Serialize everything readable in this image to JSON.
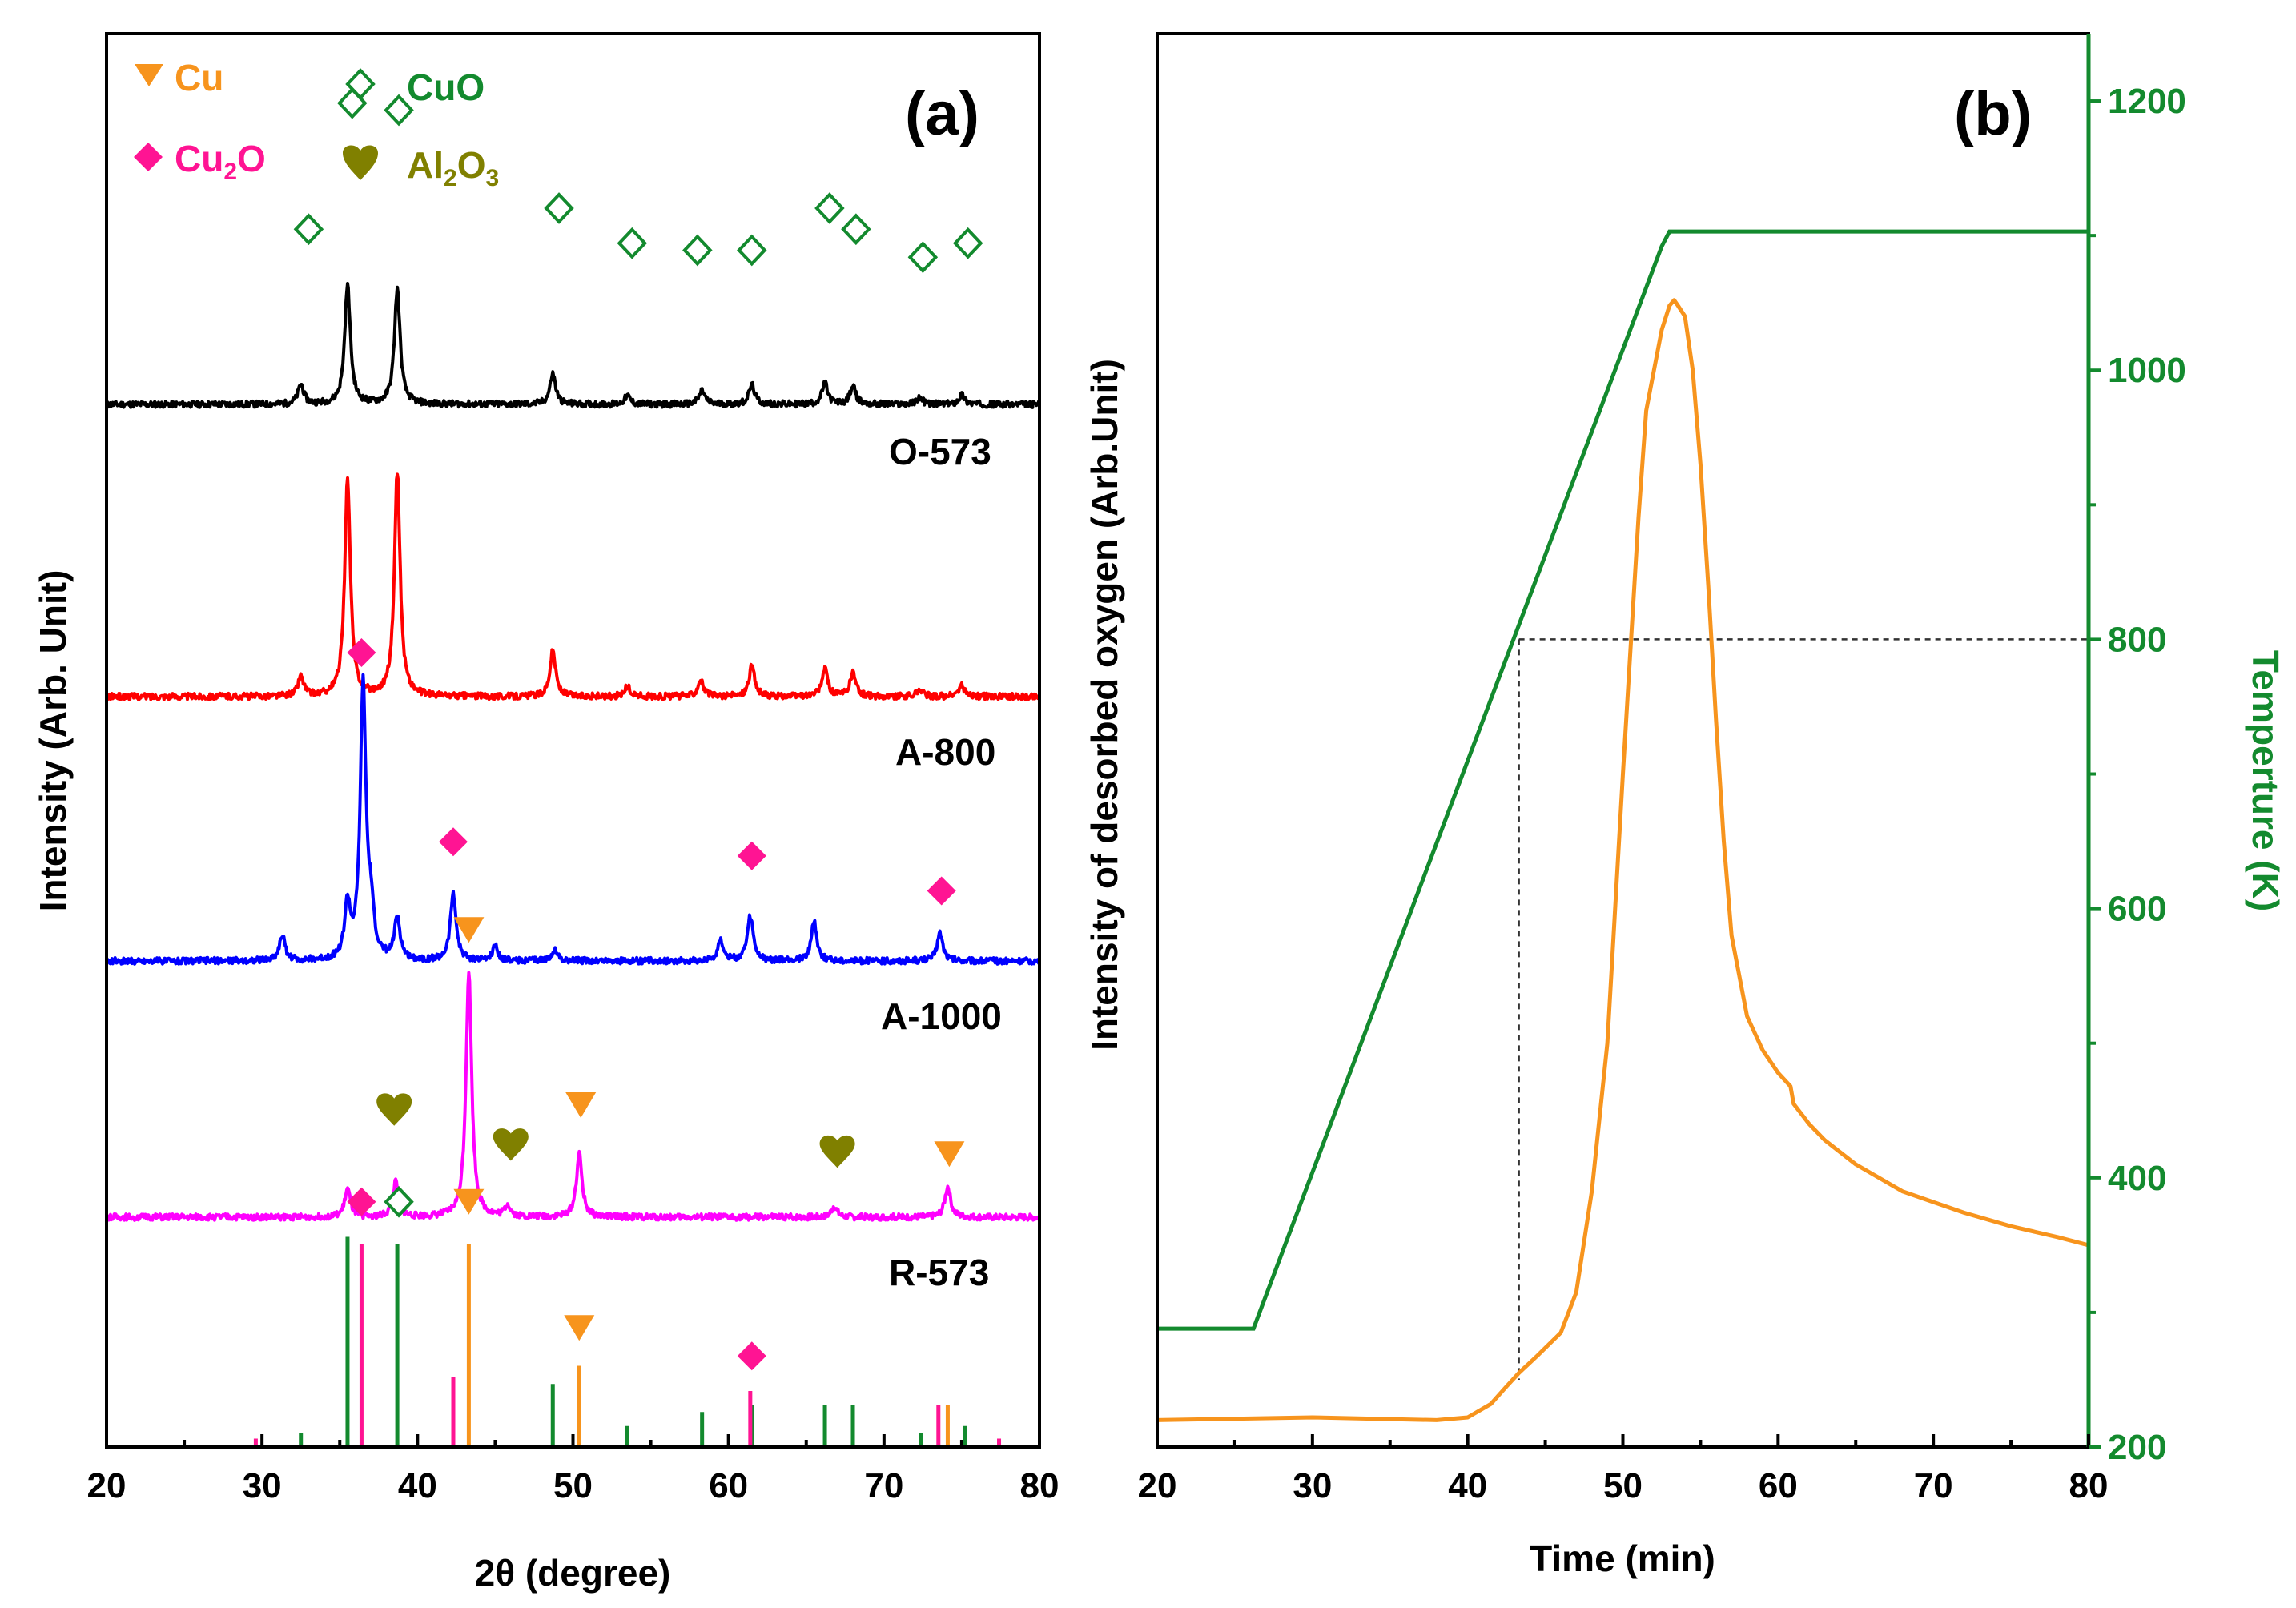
{
  "figure": {
    "colors": {
      "cu": "#f7941d",
      "cuo": "#138a2e",
      "cu2o": "#ff1493",
      "al2o3": "#808000",
      "o573": "#000000",
      "a800": "#ff0000",
      "a1000": "#0000ff",
      "r573": "#ff00ff",
      "green": "#138a2e",
      "orange": "#f7941d"
    }
  },
  "chart_data": [
    {
      "type": "line",
      "panel_label": "(a)",
      "xlabel": "2θ (degree)",
      "ylabel": "Intensity (Arb. Unit)",
      "xlim": [
        20,
        80
      ],
      "xticks": [
        "20",
        "30",
        "40",
        "50",
        "60",
        "70",
        "80"
      ],
      "legend": {
        "cu": "Cu",
        "cuo": "CuO",
        "cu2o": {
          "base": "Cu",
          "sub": "2",
          "tail": "O"
        },
        "al2o3": {
          "base": "Al",
          "sub1": "2",
          "mid": "O",
          "sub2": "3"
        }
      },
      "series": [
        {
          "name": "O-573",
          "baseline": 0,
          "peaks": [
            [
              32.5,
              1.4
            ],
            [
              35.5,
              8.5
            ],
            [
              38.7,
              8.2
            ],
            [
              48.7,
              2.2
            ],
            [
              53.5,
              0.6
            ],
            [
              58.3,
              1.0
            ],
            [
              61.5,
              1.4
            ],
            [
              66.2,
              1.5
            ],
            [
              68.0,
              1.3
            ],
            [
              72.3,
              0.5
            ],
            [
              75.0,
              0.7
            ]
          ],
          "markers": [
            {
              "type": "cuo",
              "x": 33.0,
              "y": 12.5
            },
            {
              "type": "cuo",
              "x": 35.8,
              "y": 21.5
            },
            {
              "type": "cuo",
              "x": 38.8,
              "y": 21.0
            },
            {
              "type": "cuo",
              "x": 49.1,
              "y": 14.0
            },
            {
              "type": "cuo",
              "x": 53.8,
              "y": 11.5
            },
            {
              "type": "cuo",
              "x": 58.0,
              "y": 11.0
            },
            {
              "type": "cuo",
              "x": 61.5,
              "y": 11.0
            },
            {
              "type": "cuo",
              "x": 66.5,
              "y": 14.0
            },
            {
              "type": "cuo",
              "x": 68.2,
              "y": 12.5
            },
            {
              "type": "cuo",
              "x": 72.5,
              "y": 10.5
            },
            {
              "type": "cuo",
              "x": 75.4,
              "y": 11.5
            }
          ]
        },
        {
          "name": "A-800",
          "baseline": -31,
          "peaks": [
            [
              32.5,
              1.4
            ],
            [
              35.5,
              15.5
            ],
            [
              38.7,
              16.0
            ],
            [
              48.7,
              3.3
            ],
            [
              53.5,
              0.7
            ],
            [
              58.2,
              1.2
            ],
            [
              61.5,
              2.2
            ],
            [
              66.2,
              2.0
            ],
            [
              68.0,
              1.7
            ],
            [
              72.3,
              0.5
            ],
            [
              75.0,
              0.8
            ]
          ],
          "markers": []
        },
        {
          "name": "A-1000",
          "baseline": -57,
          "peaks": [
            [
              31.3,
              1.8
            ],
            [
              35.5,
              3.8
            ],
            [
              36.5,
              19.5
            ],
            [
              37.0,
              3.0
            ],
            [
              38.7,
              3.0
            ],
            [
              42.3,
              4.8
            ],
            [
              45.0,
              1.0
            ],
            [
              48.8,
              0.8
            ],
            [
              59.5,
              1.5
            ],
            [
              61.4,
              3.2
            ],
            [
              65.5,
              2.8
            ],
            [
              73.6,
              2.0
            ]
          ],
          "markers": [
            {
              "type": "cu2o",
              "x": 36.4,
              "y": 22.0
            },
            {
              "type": "cu2o",
              "x": 42.3,
              "y": 8.5
            },
            {
              "type": "cu2o",
              "x": 61.5,
              "y": 7.5
            },
            {
              "type": "cu2o",
              "x": 73.7,
              "y": 5.0
            }
          ]
        },
        {
          "name": "R-573",
          "baseline": -82,
          "peaks": [
            [
              35.5,
              2.0
            ],
            [
              38.6,
              2.5
            ],
            [
              43.3,
              17.5
            ],
            [
              45.8,
              0.8
            ],
            [
              50.4,
              4.5
            ],
            [
              66.8,
              0.8
            ],
            [
              74.1,
              2.2
            ]
          ],
          "markers": [
            {
              "type": "cu",
              "x": 43.3,
              "y": 20.5
            },
            {
              "type": "al2o3",
              "x": 38.5,
              "y": 7.5
            },
            {
              "type": "al2o3",
              "x": 46.0,
              "y": 5.0
            },
            {
              "type": "cu",
              "x": 50.5,
              "y": 8.0
            },
            {
              "type": "al2o3",
              "x": 67.0,
              "y": 4.5
            },
            {
              "type": "cu",
              "x": 74.2,
              "y": 4.5
            }
          ]
        }
      ],
      "references": {
        "cuo": [
          [
            32.5,
            1.0
          ],
          [
            35.5,
            15.0
          ],
          [
            38.7,
            14.5
          ],
          [
            48.7,
            4.5
          ],
          [
            53.5,
            1.5
          ],
          [
            58.3,
            2.5
          ],
          [
            61.5,
            3.0
          ],
          [
            66.2,
            3.0
          ],
          [
            68.0,
            3.0
          ],
          [
            72.4,
            1.0
          ],
          [
            75.2,
            1.5
          ]
        ],
        "cu2o": [
          [
            29.6,
            0.6
          ],
          [
            36.4,
            14.5
          ],
          [
            42.3,
            5.0
          ],
          [
            61.4,
            4.0
          ],
          [
            73.5,
            3.0
          ],
          [
            77.4,
            0.6
          ]
        ],
        "cu": [
          [
            43.3,
            14.5
          ],
          [
            50.4,
            5.8
          ],
          [
            74.1,
            3.0
          ]
        ],
        "markers": [
          {
            "type": "cu2o",
            "x": 36.4,
            "y": 17.5
          },
          {
            "type": "cuo",
            "x": 38.8,
            "y": 17.5
          },
          {
            "type": "cu",
            "x": 43.3,
            "y": 17.5
          },
          {
            "type": "cu",
            "x": 50.4,
            "y": 8.5
          },
          {
            "type": "cu2o",
            "x": 61.5,
            "y": 6.5
          }
        ]
      }
    },
    {
      "type": "line",
      "panel_label": "(b)",
      "xlabel": "Time (min)",
      "ylabel_left": "Intensity of desorbed oxygen (Arb.Unit)",
      "ylabel_right": "Temperture (K)",
      "xlim": [
        20,
        80
      ],
      "ylim_right": [
        200,
        1250
      ],
      "xticks": [
        "20",
        "30",
        "40",
        "50",
        "60",
        "70",
        "80"
      ],
      "yticks_right": [
        "200",
        "400",
        "600",
        "800",
        "1000",
        "1200"
      ],
      "series": [
        {
          "name": "Temperature",
          "axis": "right",
          "x": [
            20,
            26.2,
            52.5,
            53.0,
            80
          ],
          "y": [
            288,
            288,
            1092,
            1103,
            1103
          ]
        },
        {
          "name": "Desorbed oxygen",
          "axis": "left",
          "x": [
            20,
            30,
            38,
            40,
            41.5,
            42.5,
            43.3,
            44.5,
            46,
            47,
            48,
            49,
            50,
            51,
            51.5,
            52,
            52.5,
            53,
            53.3,
            53.6,
            54,
            54.5,
            55,
            55.5,
            56,
            56.5,
            57,
            58,
            59,
            60,
            60.8,
            61,
            62,
            63,
            65,
            68,
            70,
            72,
            75,
            78,
            80
          ],
          "y": [
            220,
            222,
            220,
            222,
            232,
            245,
            255,
            268,
            285,
            315,
            390,
            500,
            700,
            890,
            970,
            1000,
            1030,
            1048,
            1052,
            1047,
            1040,
            1000,
            930,
            840,
            740,
            650,
            580,
            520,
            495,
            478,
            468,
            455,
            440,
            428,
            410,
            390,
            382,
            374,
            364,
            356,
            350
          ]
        }
      ],
      "reference_lines": {
        "x": 43.3,
        "y": 800
      }
    }
  ]
}
